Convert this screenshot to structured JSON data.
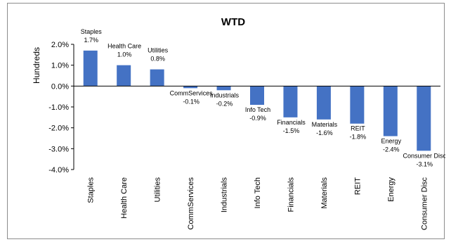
{
  "chart_data": {
    "type": "bar",
    "title": "WTD",
    "ylabel": "Hundreds",
    "xlabel": "",
    "categories": [
      "Staples",
      "Health Care",
      "Utilities",
      "CommServices",
      "Industrials",
      "Info Tech",
      "Financials",
      "Materials",
      "REIT",
      "Energy",
      "Consumer Disc"
    ],
    "values": [
      1.7,
      1.0,
      0.8,
      -0.1,
      -0.2,
      -0.9,
      -1.5,
      -1.6,
      -1.8,
      -2.4,
      -3.1
    ],
    "data_labels": [
      [
        "Staples",
        "1.7%"
      ],
      [
        "Health Care",
        "1.0%"
      ],
      [
        "Utilities",
        "0.8%"
      ],
      [
        "CommServices",
        "-0.1%"
      ],
      [
        "Industrials",
        "-0.2%"
      ],
      [
        "Info Tech",
        "-0.9%"
      ],
      [
        "Financials",
        "-1.5%"
      ],
      [
        "Materials",
        "-1.6%"
      ],
      [
        "REIT",
        "-1.8%"
      ],
      [
        "Energy",
        "-2.4%"
      ],
      [
        "Consumer Disc",
        "-3.1%"
      ]
    ],
    "yticks": [
      "2.0%",
      "1.0%",
      "0.0%",
      "-1.0%",
      "-2.0%",
      "-3.0%",
      "-4.0%"
    ],
    "ylim": [
      -4,
      2
    ],
    "grid": false,
    "legend": "none",
    "bar_color": "#4472c4"
  }
}
